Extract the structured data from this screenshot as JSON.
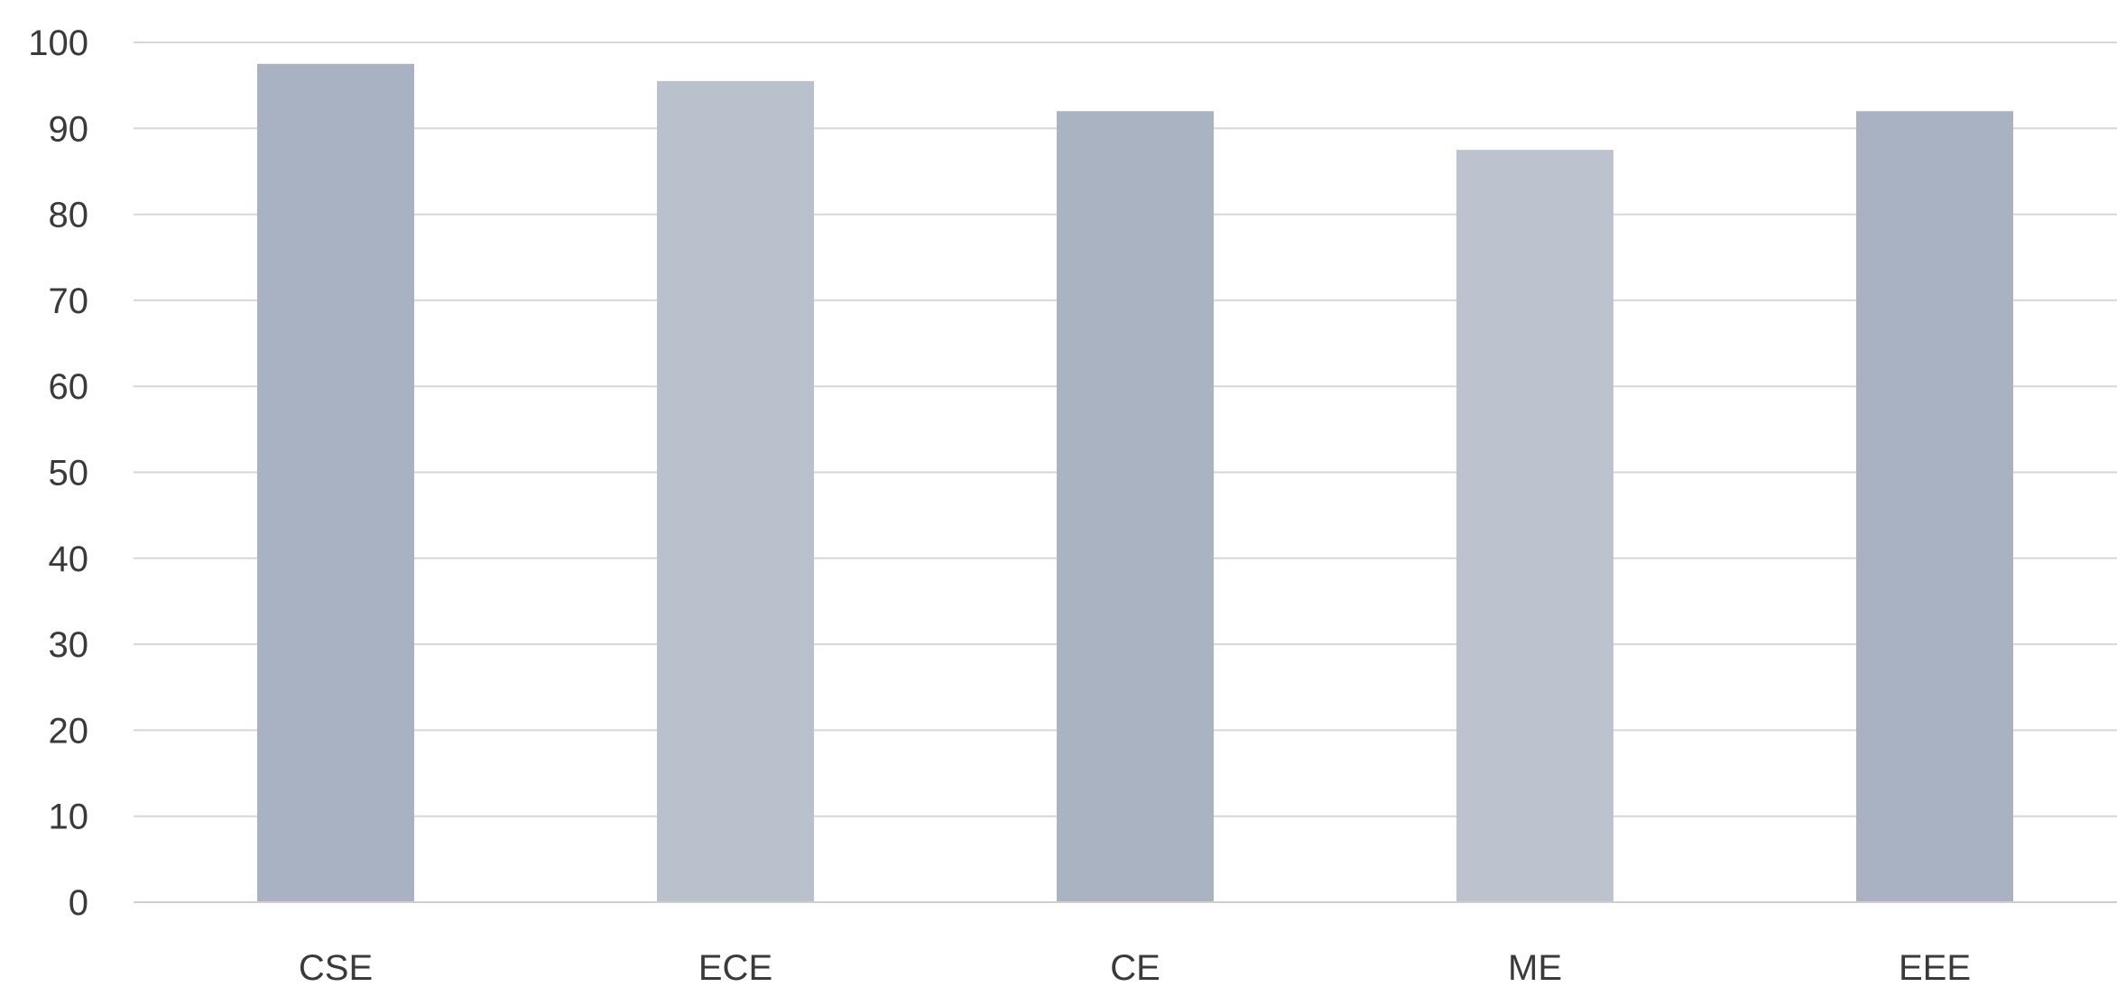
{
  "chart_data": {
    "type": "bar",
    "categories": [
      "CSE",
      "ECE",
      "CE",
      "ME",
      "EEE"
    ],
    "values": [
      97.5,
      95.5,
      92,
      87.5,
      92
    ],
    "title": "",
    "xlabel": "",
    "ylabel": "",
    "ylim": [
      0,
      100
    ],
    "yticks": [
      "0",
      "10",
      "20",
      "30",
      "40",
      "50",
      "60",
      "70",
      "80",
      "90",
      "100"
    ],
    "grid": true,
    "legend": "none",
    "bar_colors": [
      "#a8b2c2",
      "#b9c1cd",
      "#aab3c1",
      "#bcc3cf",
      "#a9b2c3"
    ]
  }
}
